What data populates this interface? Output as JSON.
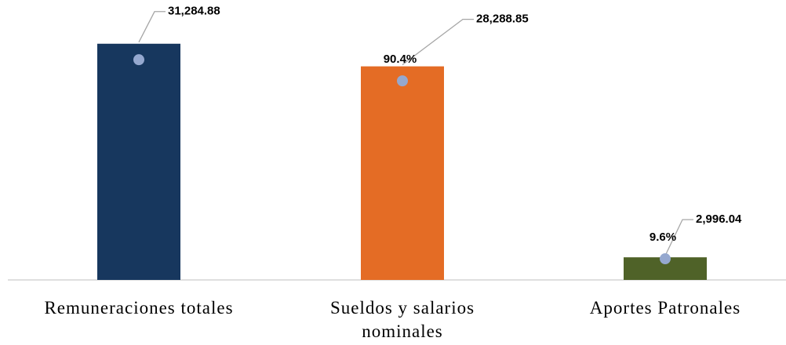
{
  "chart_data": {
    "type": "bar",
    "categories": [
      "Remuneraciones totales",
      "Sueldos y salarios nominales",
      "Aportes Patronales"
    ],
    "ylim": [
      0,
      35000
    ],
    "y2lim": [
      0,
      120
    ],
    "series": [
      {
        "type": "bar",
        "colors": [
          "#17375e",
          "#e46c25",
          "#4f6228"
        ],
        "values": [
          31284.88,
          28288.85,
          2996.04
        ],
        "value_labels": [
          "31,284.88",
          "28,288.85",
          "2,996.04"
        ]
      },
      {
        "type": "scatter",
        "axis": "y2",
        "color": "#95a8cf",
        "values": [
          100,
          90.4,
          9.6
        ],
        "value_labels": [
          null,
          "90.4%",
          "9.6%"
        ]
      }
    ]
  }
}
